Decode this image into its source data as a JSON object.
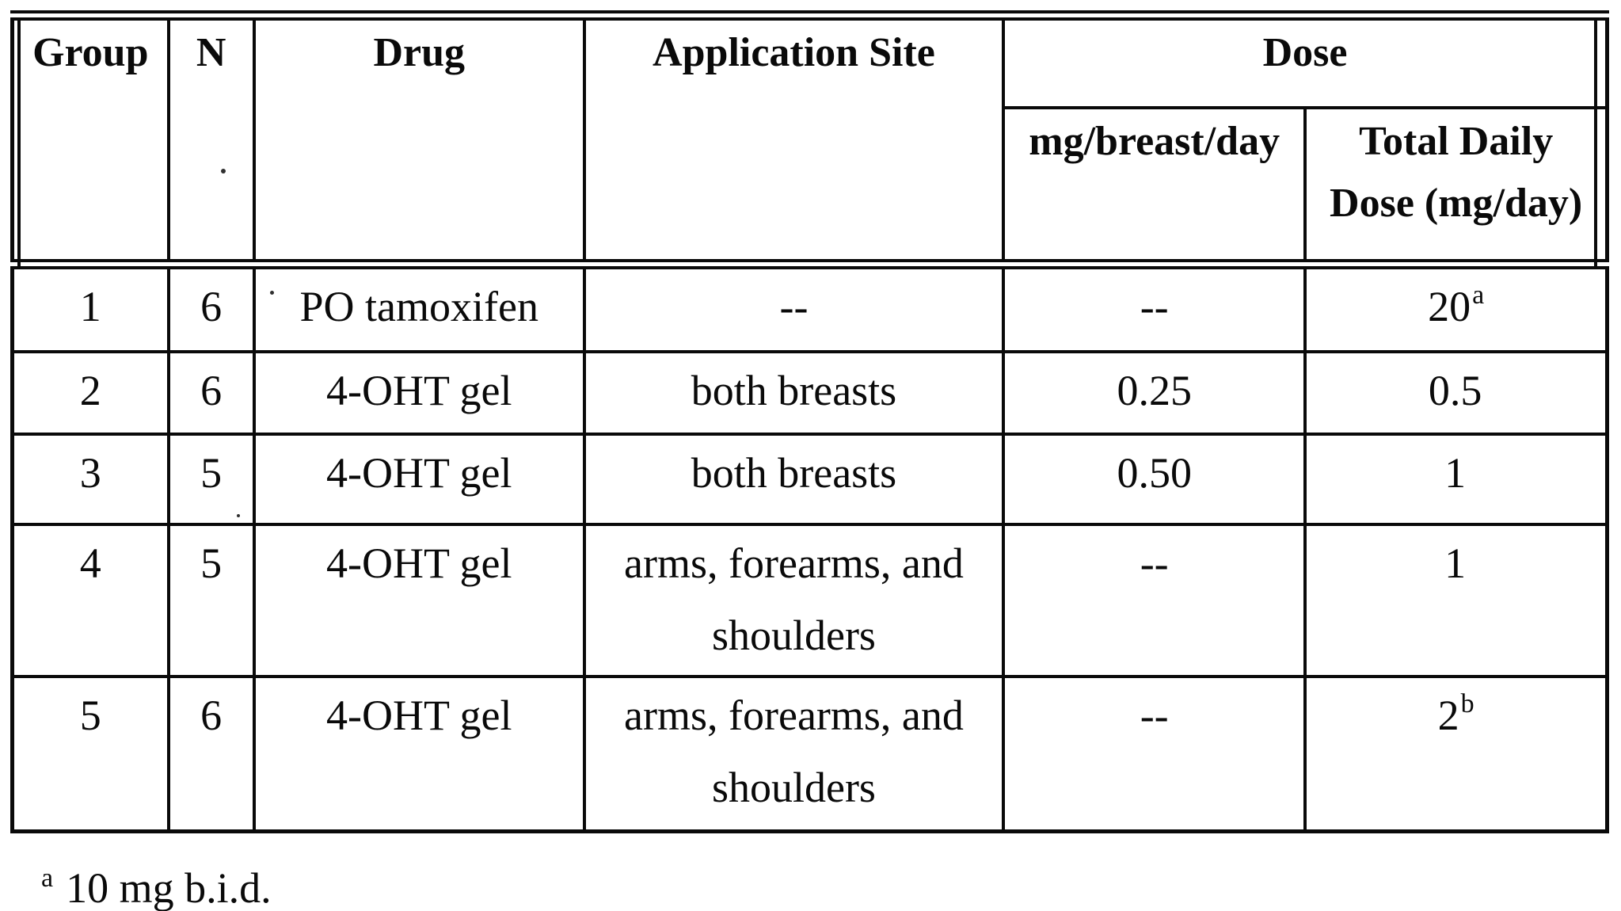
{
  "colors": {
    "ink": "#0a0a0a",
    "paper": "#ffffff"
  },
  "table": {
    "header": {
      "group": "Group",
      "n": "N",
      "drug": "Drug",
      "application_site": "Application Site",
      "dose": "Dose",
      "mg_breast_day": "mg/breast/day",
      "total_daily_line1": "Total Daily",
      "total_daily_line2": "Dose (mg/day)"
    },
    "rows": [
      {
        "group": "1",
        "n": "6",
        "drug": "PO tamoxifen",
        "site": "--",
        "mg_breast_day": "--",
        "total": "20",
        "total_sup": "a"
      },
      {
        "group": "2",
        "n": "6",
        "drug": "4-OHT gel",
        "site": "both breasts",
        "mg_breast_day": "0.25",
        "total": "0.5",
        "total_sup": ""
      },
      {
        "group": "3",
        "n": "5",
        "drug": "4-OHT gel",
        "site": "both breasts",
        "mg_breast_day": "0.50",
        "total": "1",
        "total_sup": ""
      },
      {
        "group": "4",
        "n": "5",
        "drug": "4-OHT gel",
        "site": "arms, forearms, and shoulders",
        "mg_breast_day": "--",
        "total": "1",
        "total_sup": ""
      },
      {
        "group": "5",
        "n": "6",
        "drug": "4-OHT gel",
        "site": "arms, forearms, and shoulders",
        "mg_breast_day": "--",
        "total": "2",
        "total_sup": "b"
      }
    ],
    "footnote": {
      "marker": "a",
      "text": "10 mg b.i.d."
    }
  }
}
